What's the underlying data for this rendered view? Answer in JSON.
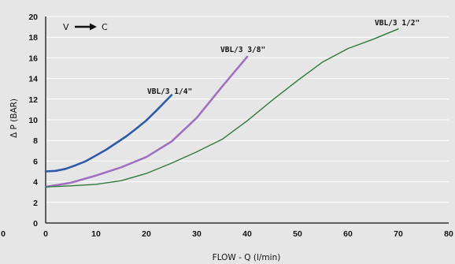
{
  "chart_data": {
    "type": "line",
    "title": "",
    "xlabel": "FLOW - Q (l/min)",
    "ylabel": "Δ P (BAR)",
    "xlim": [
      0,
      80
    ],
    "ylim": [
      0,
      20
    ],
    "x_ticks": [
      "0",
      "10",
      "20",
      "30",
      "40",
      "50",
      "60",
      "70",
      "80"
    ],
    "x_ticks_left_extra": "0",
    "y_ticks": [
      "0",
      "2",
      "4",
      "6",
      "8",
      "10",
      "12",
      "14",
      "16",
      "18",
      "20"
    ],
    "grid": "horizontal",
    "annotation": {
      "from": "V",
      "to": "C",
      "arrow": "right-arrow"
    },
    "series": [
      {
        "name": "VBL/3 1/4\"",
        "color": "#2e5aa8",
        "x": [
          0,
          2,
          4,
          6,
          8,
          10,
          12,
          14,
          16,
          18,
          20,
          22,
          24,
          25
        ],
        "y": [
          5.0,
          5.05,
          5.25,
          5.6,
          6.0,
          6.55,
          7.1,
          7.75,
          8.4,
          9.15,
          9.95,
          10.9,
          11.9,
          12.4
        ]
      },
      {
        "name": "VBL/3 3/8\"",
        "color": "#a070c0",
        "x": [
          0,
          5,
          10,
          15,
          20,
          25,
          30,
          35,
          40
        ],
        "y": [
          3.5,
          3.9,
          4.6,
          5.4,
          6.4,
          7.9,
          10.2,
          13.2,
          16.1
        ]
      },
      {
        "name": "VBL/3 1/2\"",
        "color": "#2f7a3c",
        "x": [
          0,
          5,
          10,
          15,
          20,
          25,
          30,
          35,
          40,
          45,
          50,
          55,
          60,
          65,
          70
        ],
        "y": [
          3.5,
          3.6,
          3.75,
          4.1,
          4.8,
          5.8,
          6.9,
          8.1,
          9.9,
          11.9,
          13.8,
          15.6,
          16.9,
          17.8,
          18.8
        ]
      }
    ]
  }
}
